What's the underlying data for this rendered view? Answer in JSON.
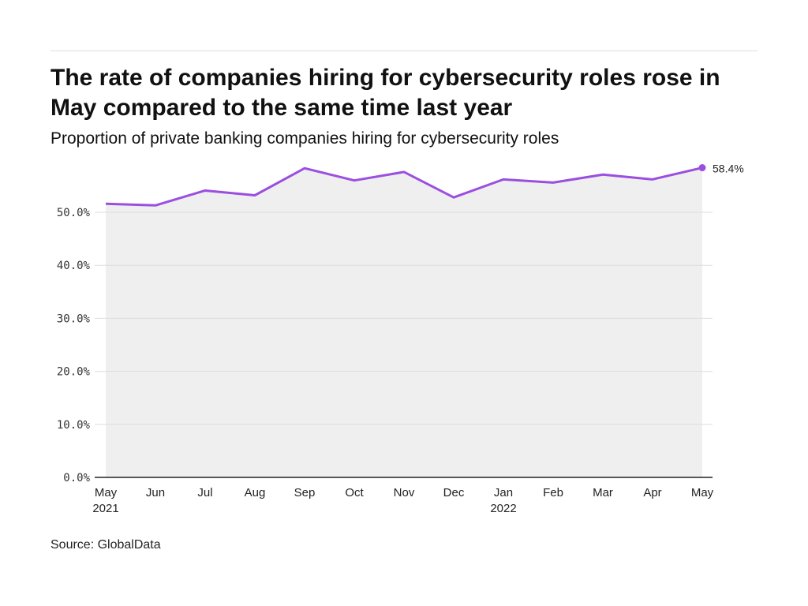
{
  "chart_data": {
    "type": "line",
    "title": "The rate of companies hiring for cybersecurity roles rose in May compared to the same time last year",
    "subtitle": "Proportion of private banking companies hiring for cybersecurity roles",
    "source": "Source: GlobalData",
    "categories": [
      "May",
      "Jun",
      "Jul",
      "Aug",
      "Sep",
      "Oct",
      "Nov",
      "Dec",
      "Jan",
      "Feb",
      "Mar",
      "Apr",
      "May"
    ],
    "year_labels": {
      "0": "2021",
      "8": "2022"
    },
    "values": [
      51.6,
      51.3,
      54.1,
      53.2,
      58.3,
      56.0,
      57.6,
      52.8,
      56.2,
      55.6,
      57.1,
      56.2,
      58.4
    ],
    "end_label": "58.4%",
    "yticks": [
      "0.0%",
      "10.0%",
      "20.0%",
      "30.0%",
      "40.0%",
      "50.0%"
    ],
    "ylim": [
      0,
      60
    ],
    "grid": true,
    "line_color": "#9b4fe0",
    "area_color": "#efefef"
  }
}
